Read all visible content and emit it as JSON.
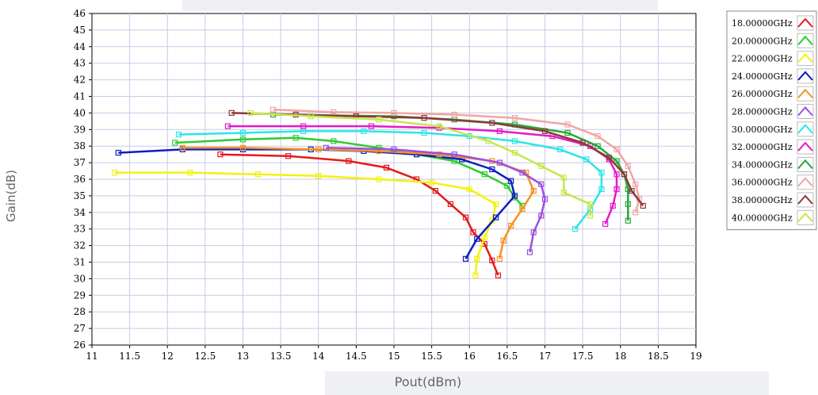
{
  "chart_data": {
    "type": "line",
    "xlabel": "Pout(dBm)",
    "ylabel": "Gain(dB)",
    "xlim": [
      11,
      19
    ],
    "ylim": [
      26,
      46
    ],
    "x_ticks": [
      "11",
      "11.5",
      "12",
      "12.5",
      "13",
      "13.5",
      "14",
      "14.5",
      "15",
      "15.5",
      "16",
      "16.5",
      "17",
      "17.5",
      "18",
      "18.5",
      "19"
    ],
    "y_ticks": [
      "46",
      "45",
      "44",
      "43",
      "42",
      "41",
      "40",
      "39",
      "38",
      "37",
      "36",
      "35",
      "34",
      "33",
      "32",
      "31",
      "30",
      "29",
      "28",
      "27",
      "26"
    ],
    "grid": true,
    "legend_position": "right",
    "series": [
      {
        "name": "18.00000GHz",
        "color": "#e41a1c",
        "points": [
          [
            12.7,
            37.5
          ],
          [
            13.6,
            37.4
          ],
          [
            14.4,
            37.1
          ],
          [
            14.9,
            36.7
          ],
          [
            15.3,
            36.0
          ],
          [
            15.55,
            35.3
          ],
          [
            15.75,
            34.5
          ],
          [
            15.95,
            33.7
          ],
          [
            16.05,
            32.8
          ],
          [
            16.2,
            32.1
          ],
          [
            16.3,
            31.1
          ],
          [
            16.38,
            30.2
          ]
        ]
      },
      {
        "name": "20.00000GHz",
        "color": "#2ecc2e",
        "points": [
          [
            12.1,
            38.2
          ],
          [
            13.0,
            38.4
          ],
          [
            13.7,
            38.5
          ],
          [
            14.2,
            38.3
          ],
          [
            14.8,
            37.9
          ],
          [
            15.3,
            37.5
          ],
          [
            15.8,
            37.1
          ],
          [
            16.2,
            36.3
          ],
          [
            16.5,
            35.6
          ],
          [
            16.6,
            34.9
          ],
          [
            16.7,
            34.4
          ]
        ]
      },
      {
        "name": "22.00000GHz",
        "color": "#f2f20f",
        "points": [
          [
            11.3,
            36.4
          ],
          [
            12.3,
            36.4
          ],
          [
            13.2,
            36.3
          ],
          [
            14.0,
            36.2
          ],
          [
            14.8,
            36.0
          ],
          [
            15.5,
            35.8
          ],
          [
            16.0,
            35.4
          ],
          [
            16.35,
            34.5
          ],
          [
            16.3,
            33.5
          ],
          [
            16.2,
            32.5
          ],
          [
            16.1,
            31.2
          ],
          [
            16.08,
            30.2
          ]
        ]
      },
      {
        "name": "24.00000GHz",
        "color": "#0b1ec2",
        "points": [
          [
            11.35,
            37.6
          ],
          [
            12.2,
            37.8
          ],
          [
            13.0,
            37.8
          ],
          [
            13.9,
            37.8
          ],
          [
            14.6,
            37.7
          ],
          [
            15.3,
            37.5
          ],
          [
            15.9,
            37.2
          ],
          [
            16.3,
            36.6
          ],
          [
            16.55,
            35.9
          ],
          [
            16.6,
            35.0
          ],
          [
            16.35,
            33.7
          ],
          [
            16.1,
            32.4
          ],
          [
            15.95,
            31.2
          ]
        ]
      },
      {
        "name": "26.00000GHz",
        "color": "#f7931e",
        "points": [
          [
            12.2,
            37.9
          ],
          [
            13.0,
            37.9
          ],
          [
            14.0,
            37.8
          ],
          [
            14.8,
            37.7
          ],
          [
            15.6,
            37.5
          ],
          [
            16.3,
            37.1
          ],
          [
            16.75,
            36.4
          ],
          [
            16.85,
            35.3
          ],
          [
            16.7,
            34.2
          ],
          [
            16.55,
            33.2
          ],
          [
            16.45,
            32.3
          ],
          [
            16.4,
            31.2
          ]
        ]
      },
      {
        "name": "28.00000GHz",
        "color": "#9b4fe0",
        "points": [
          [
            14.1,
            37.9
          ],
          [
            15.0,
            37.8
          ],
          [
            15.8,
            37.5
          ],
          [
            16.4,
            37.0
          ],
          [
            16.7,
            36.4
          ],
          [
            16.95,
            35.7
          ],
          [
            17.0,
            34.8
          ],
          [
            16.95,
            33.8
          ],
          [
            16.85,
            32.8
          ],
          [
            16.8,
            31.6
          ]
        ]
      },
      {
        "name": "30.00000GHz",
        "color": "#2be5e8",
        "points": [
          [
            12.15,
            38.7
          ],
          [
            13.0,
            38.8
          ],
          [
            13.8,
            38.9
          ],
          [
            14.6,
            38.9
          ],
          [
            15.4,
            38.8
          ],
          [
            16.0,
            38.6
          ],
          [
            16.6,
            38.3
          ],
          [
            17.2,
            37.8
          ],
          [
            17.55,
            37.2
          ],
          [
            17.75,
            36.4
          ],
          [
            17.75,
            35.4
          ],
          [
            17.6,
            34.2
          ],
          [
            17.4,
            33.0
          ]
        ]
      },
      {
        "name": "32.00000GHz",
        "color": "#e41ac8",
        "points": [
          [
            12.8,
            39.2
          ],
          [
            13.8,
            39.2
          ],
          [
            14.7,
            39.2
          ],
          [
            15.6,
            39.1
          ],
          [
            16.4,
            38.9
          ],
          [
            17.1,
            38.6
          ],
          [
            17.6,
            38.0
          ],
          [
            17.85,
            37.2
          ],
          [
            17.95,
            36.3
          ],
          [
            17.95,
            35.4
          ],
          [
            17.9,
            34.4
          ],
          [
            17.8,
            33.3
          ]
        ]
      },
      {
        "name": "34.00000GHz",
        "color": "#27a83a",
        "points": [
          [
            13.4,
            39.9
          ],
          [
            14.2,
            39.85
          ],
          [
            15.0,
            39.8
          ],
          [
            15.8,
            39.6
          ],
          [
            16.6,
            39.3
          ],
          [
            17.3,
            38.8
          ],
          [
            17.7,
            38.0
          ],
          [
            17.95,
            37.1
          ],
          [
            18.05,
            36.3
          ],
          [
            18.1,
            35.4
          ],
          [
            18.1,
            34.5
          ],
          [
            18.1,
            33.5
          ]
        ]
      },
      {
        "name": "36.00000GHz",
        "color": "#f2a5a5",
        "points": [
          [
            13.4,
            40.2
          ],
          [
            14.2,
            40.05
          ],
          [
            15.0,
            40.0
          ],
          [
            15.8,
            39.9
          ],
          [
            16.6,
            39.7
          ],
          [
            17.3,
            39.3
          ],
          [
            17.7,
            38.6
          ],
          [
            17.95,
            37.8
          ],
          [
            18.1,
            36.8
          ],
          [
            18.2,
            35.7
          ],
          [
            18.25,
            34.8
          ],
          [
            18.2,
            34.0
          ]
        ]
      },
      {
        "name": "38.00000GHz",
        "color": "#8b3a3a",
        "points": [
          [
            12.85,
            40.0
          ],
          [
            13.7,
            39.9
          ],
          [
            14.5,
            39.8
          ],
          [
            15.4,
            39.7
          ],
          [
            16.3,
            39.4
          ],
          [
            17.0,
            38.9
          ],
          [
            17.5,
            38.2
          ],
          [
            17.85,
            37.3
          ],
          [
            18.05,
            36.3
          ],
          [
            18.15,
            35.3
          ],
          [
            18.3,
            34.4
          ]
        ]
      },
      {
        "name": "40.00000GHz",
        "color": "#c6e84a",
        "points": [
          [
            13.1,
            40.0
          ],
          [
            13.9,
            39.8
          ],
          [
            14.8,
            39.6
          ],
          [
            15.6,
            39.2
          ],
          [
            16.25,
            38.3
          ],
          [
            16.6,
            37.6
          ],
          [
            16.95,
            36.8
          ],
          [
            17.25,
            36.1
          ],
          [
            17.25,
            35.2
          ],
          [
            17.6,
            34.5
          ],
          [
            17.6,
            33.8
          ]
        ]
      }
    ]
  }
}
